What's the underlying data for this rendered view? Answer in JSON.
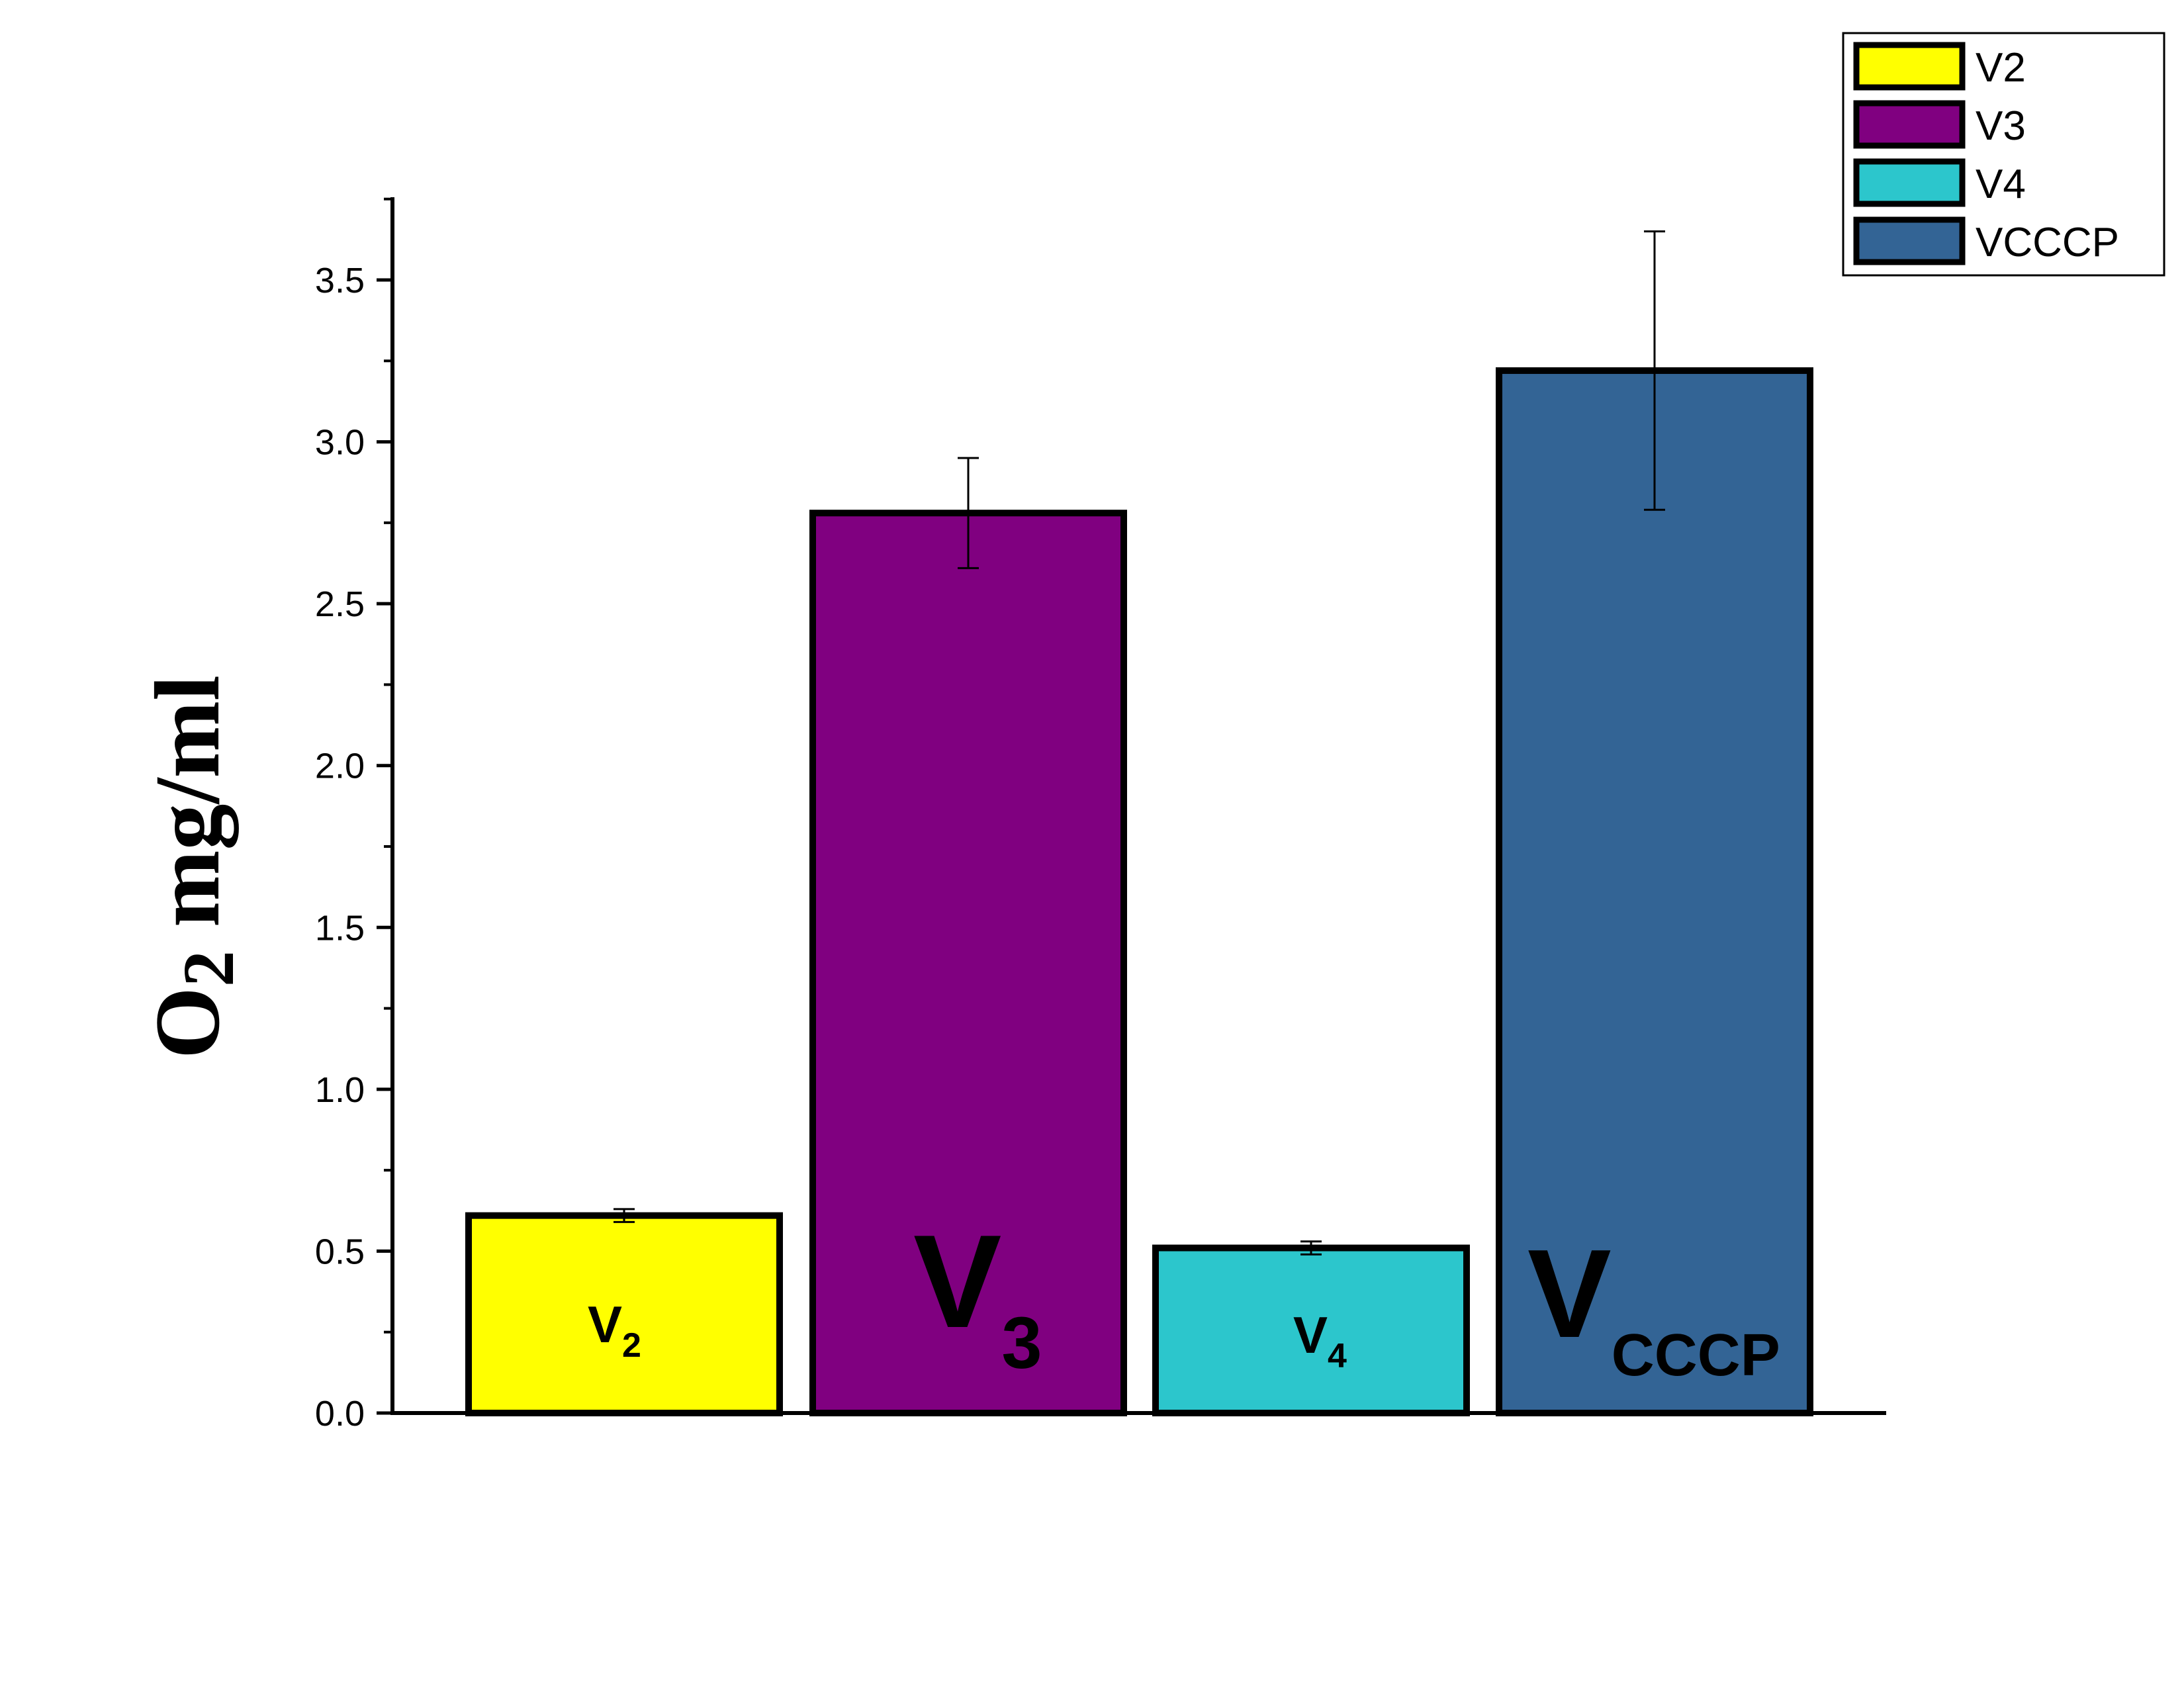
{
  "chart_data": {
    "type": "bar",
    "categories": [
      "V2",
      "V3",
      "V4",
      "VCCCP"
    ],
    "values": [
      0.61,
      2.78,
      0.51,
      3.22
    ],
    "errors": [
      0.02,
      0.17,
      0.02,
      0.43
    ],
    "colors": [
      "#ffff00",
      "#800080",
      "#2cc6cc",
      "#336495"
    ],
    "ylabel": {
      "main": "O",
      "sub": "2",
      "rest": " mg/ml"
    },
    "ylim": [
      0,
      3.75
    ],
    "yticks": [
      "0.0",
      "0.5",
      "1.0",
      "1.5",
      "2.0",
      "2.5",
      "3.0",
      "3.5"
    ],
    "ytick_values": [
      0,
      0.5,
      1.0,
      1.5,
      2.0,
      2.5,
      3.0,
      3.5
    ],
    "legend": {
      "placement": "top-right",
      "entries": [
        "V2",
        "V3",
        "V4",
        "VCCCP"
      ]
    },
    "bar_labels": [
      {
        "main": "V",
        "sub": "2"
      },
      {
        "main": "V",
        "sub": "3"
      },
      {
        "main": "V",
        "sub": "4"
      },
      {
        "main": "V",
        "sub": "CCCP"
      }
    ],
    "grid": false
  }
}
